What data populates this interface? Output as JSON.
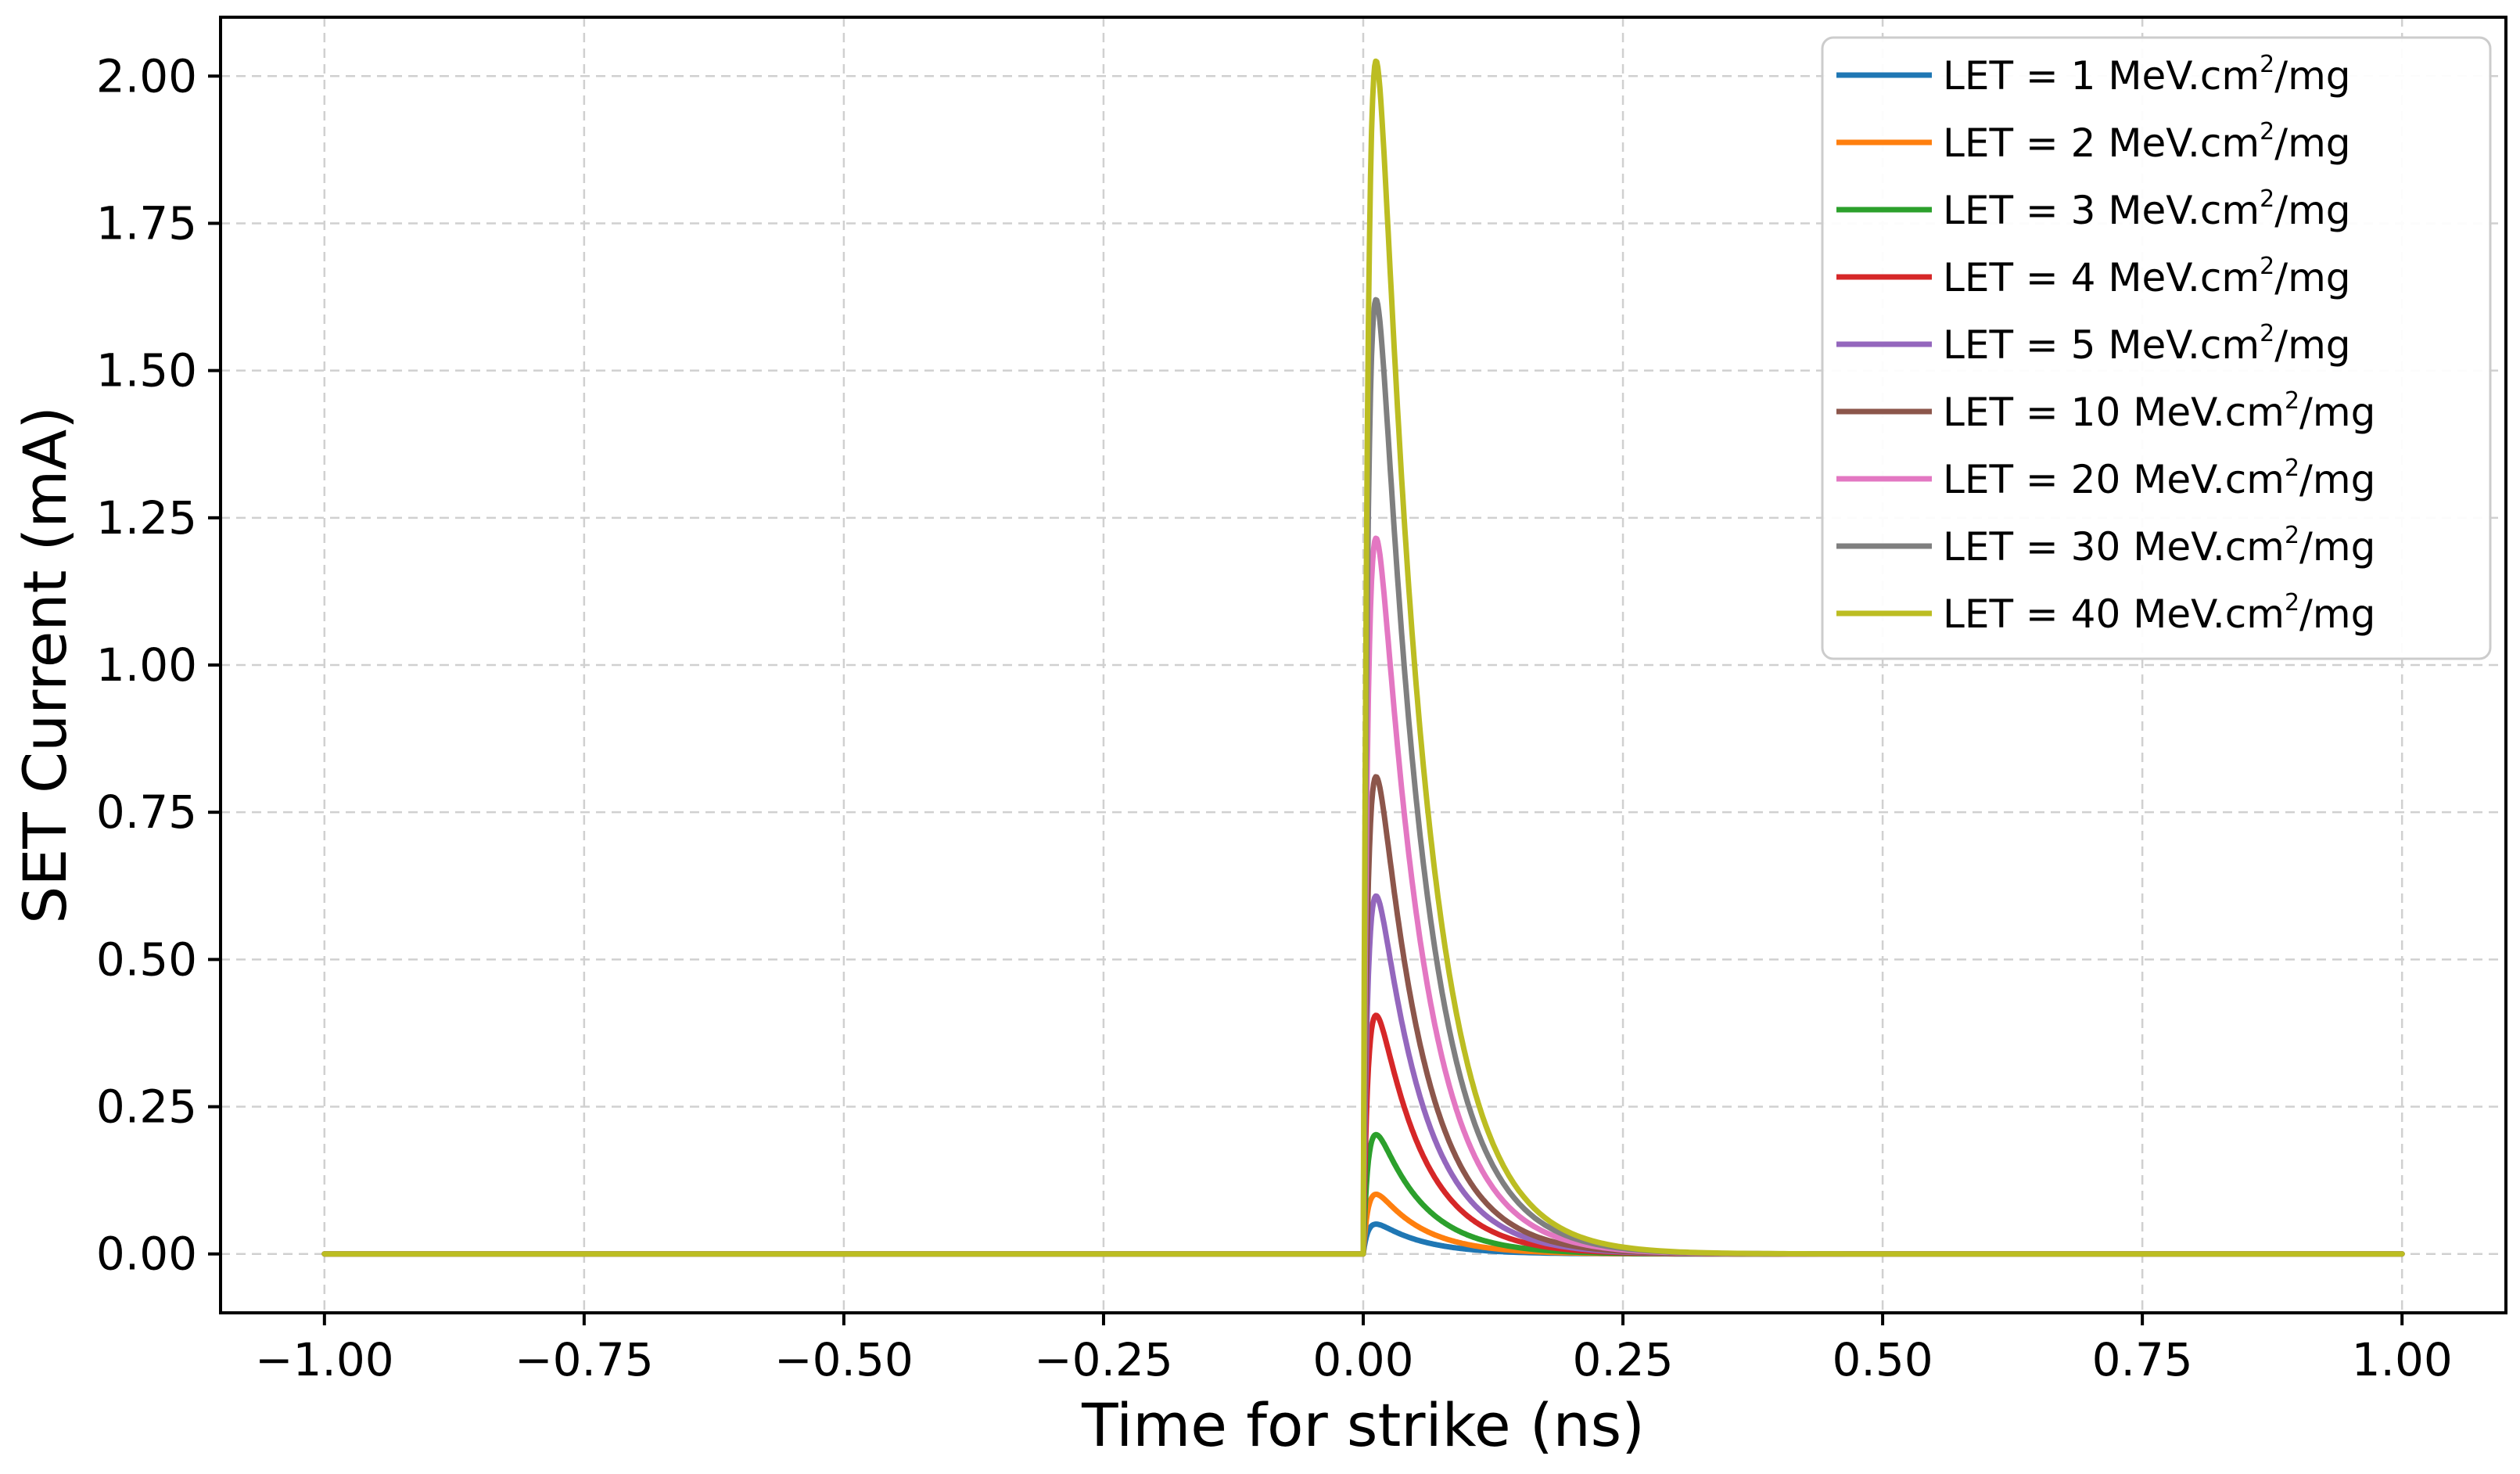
{
  "chart_data": {
    "type": "line",
    "xlabel": "Time for strike (ns)",
    "ylabel": "SET Current (mA)",
    "xlim": [
      -1.1,
      1.1
    ],
    "ylim": [
      -0.1,
      2.1
    ],
    "xticks": [
      -1.0,
      -0.75,
      -0.5,
      -0.25,
      0.0,
      0.25,
      0.5,
      0.75,
      1.0
    ],
    "xtick_labels": [
      "−1.00",
      "−0.75",
      "−0.50",
      "−0.25",
      "0.00",
      "0.25",
      "0.50",
      "0.75",
      "1.00"
    ],
    "yticks": [
      0.0,
      0.25,
      0.5,
      0.75,
      1.0,
      1.25,
      1.5,
      1.75,
      2.0
    ],
    "ytick_labels": [
      "0.00",
      "0.25",
      "0.50",
      "0.75",
      "1.00",
      "1.25",
      "1.50",
      "1.75",
      "2.00"
    ],
    "grid": true,
    "legend_position": "top-right",
    "x_range": [
      -1.0,
      1.0
    ],
    "pulse": {
      "onset": 0.0,
      "peak_time": 0.015,
      "rise_tau": 0.005,
      "fall_tau": 0.045
    },
    "series": [
      {
        "name": "LET = 1 MeV.cm2/mg",
        "label_pre": "LET = 1 MeV.cm",
        "label_sup": "2",
        "label_post": "/mg",
        "color": "#1f77b4",
        "peak": 0.05
      },
      {
        "name": "LET = 2 MeV.cm2/mg",
        "label_pre": "LET = 2 MeV.cm",
        "label_sup": "2",
        "label_post": "/mg",
        "color": "#ff7f0e",
        "peak": 0.1
      },
      {
        "name": "LET = 3 MeV.cm2/mg",
        "label_pre": "LET = 3 MeV.cm",
        "label_sup": "2",
        "label_post": "/mg",
        "color": "#2ca02c",
        "peak": 0.2
      },
      {
        "name": "LET = 4 MeV.cm2/mg",
        "label_pre": "LET = 4 MeV.cm",
        "label_sup": "2",
        "label_post": "/mg",
        "color": "#d62728",
        "peak": 0.4
      },
      {
        "name": "LET = 5 MeV.cm2/mg",
        "label_pre": "LET = 5 MeV.cm",
        "label_sup": "2",
        "label_post": "/mg",
        "color": "#9467bd",
        "peak": 0.6
      },
      {
        "name": "LET = 10 MeV.cm2/mg",
        "label_pre": "LET = 10 MeV.cm",
        "label_sup": "2",
        "label_post": "/mg",
        "color": "#8c564b",
        "peak": 0.8
      },
      {
        "name": "LET = 20 MeV.cm2/mg",
        "label_pre": "LET = 20 MeV.cm",
        "label_sup": "2",
        "label_post": "/mg",
        "color": "#e377c2",
        "peak": 1.2
      },
      {
        "name": "LET = 30 MeV.cm2/mg",
        "label_pre": "LET = 30 MeV.cm",
        "label_sup": "2",
        "label_post": "/mg",
        "color": "#7f7f7f",
        "peak": 1.6
      },
      {
        "name": "LET = 40 MeV.cm2/mg",
        "label_pre": "LET = 40 MeV.cm",
        "label_sup": "2",
        "label_post": "/mg",
        "color": "#bcbd22",
        "peak": 2.0
      }
    ]
  }
}
